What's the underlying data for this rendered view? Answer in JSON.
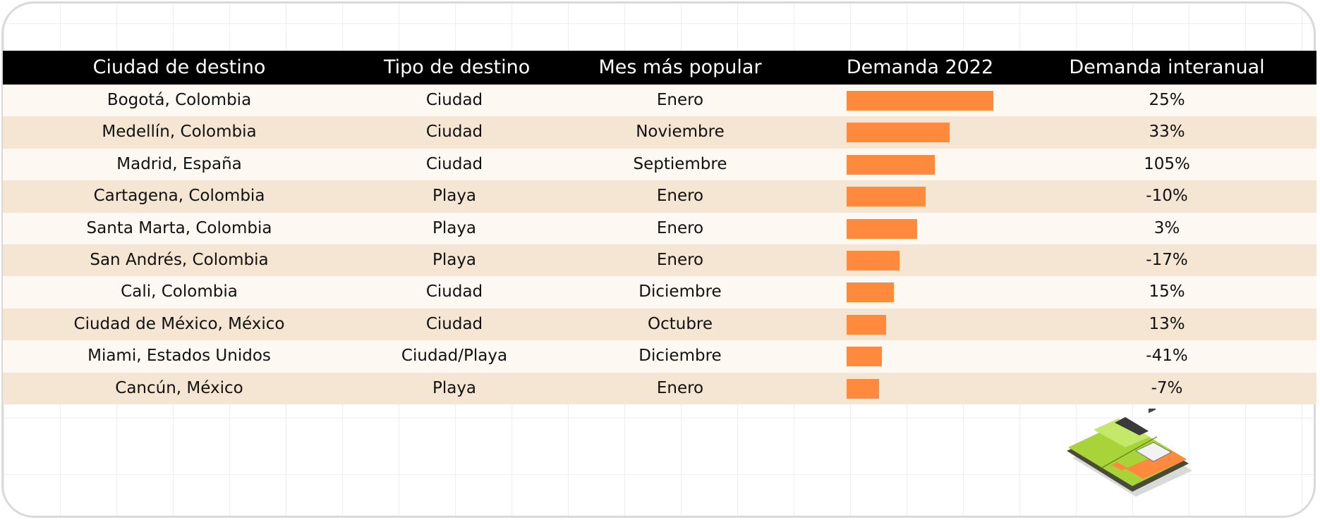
{
  "colors": {
    "header_bg": "#000000",
    "header_text": "#ffffff",
    "row_odd": "#fdf8f2",
    "row_even": "#f5e5d3",
    "bar": "#ff8a3d",
    "card_border": "#d9d9d9"
  },
  "headers": {
    "city": "Ciudad de destino",
    "type": "Tipo de destino",
    "month": "Mes más popular",
    "demand": "Demanda 2022",
    "yoy": "Demanda interanual"
  },
  "chart_data": {
    "type": "bar",
    "orientation": "horizontal",
    "title": "",
    "xlabel": "",
    "ylabel": "",
    "value_scale": "relative (no axis shown)",
    "xlim": [
      0,
      100
    ],
    "categories": [
      "Bogotá, Colombia",
      "Medellín, Colombia",
      "Madrid, España",
      "Cartagena, Colombia",
      "Santa Marta, Colombia",
      "San Andrés, Colombia",
      "Cali, Colombia",
      "Ciudad de México, México",
      "Miami, Estados Unidos",
      "Cancún, México"
    ],
    "values": [
      100,
      70,
      60,
      54,
      48,
      36,
      32,
      27,
      24,
      22
    ],
    "rows": [
      {
        "city": "Bogotá, Colombia",
        "type": "Ciudad",
        "month": "Enero",
        "demand": 100,
        "yoy": "25%"
      },
      {
        "city": "Medellín, Colombia",
        "type": "Ciudad",
        "month": "Noviembre",
        "demand": 70,
        "yoy": "33%"
      },
      {
        "city": "Madrid, España",
        "type": "Ciudad",
        "month": "Septiembre",
        "demand": 60,
        "yoy": "105%"
      },
      {
        "city": "Cartagena, Colombia",
        "type": "Playa",
        "month": "Enero",
        "demand": 54,
        "yoy": "-10%"
      },
      {
        "city": "Santa Marta, Colombia",
        "type": "Playa",
        "month": "Enero",
        "demand": 48,
        "yoy": "3%"
      },
      {
        "city": "San Andrés, Colombia",
        "type": "Playa",
        "month": "Enero",
        "demand": 36,
        "yoy": "-17%"
      },
      {
        "city": "Cali, Colombia",
        "type": "Ciudad",
        "month": "Diciembre",
        "demand": 32,
        "yoy": "15%"
      },
      {
        "city": "Ciudad de México, México",
        "type": "Ciudad",
        "month": "Octubre",
        "demand": 27,
        "yoy": "13%"
      },
      {
        "city": "Miami, Estados Unidos",
        "type": "Ciudad/Playa",
        "month": "Diciembre",
        "demand": 24,
        "yoy": "-41%"
      },
      {
        "city": "Cancún, México",
        "type": "Playa",
        "month": "Enero",
        "demand": 22,
        "yoy": "-7%"
      }
    ]
  },
  "illustration": {
    "icon": "wallet-illustration-icon"
  }
}
